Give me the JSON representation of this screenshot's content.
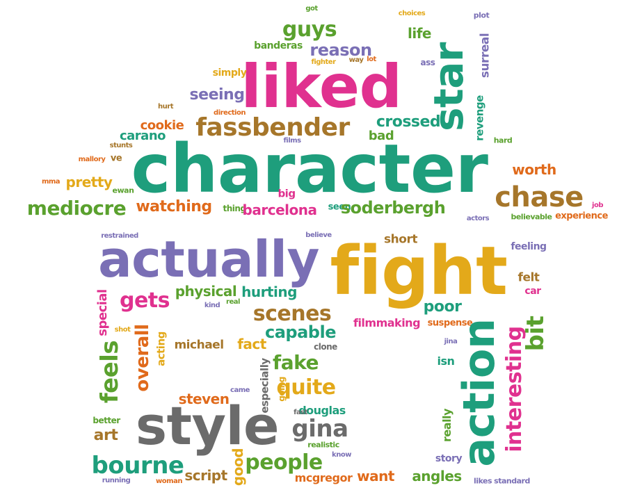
{
  "colors": {
    "teal": "#1e9e7c",
    "magenta": "#e0318f",
    "green": "#5aa12e",
    "purple": "#7a6fb5",
    "gold": "#e3a91a",
    "orange": "#e06a1b",
    "brown": "#a6762a",
    "gray": "#6b6b6b"
  },
  "words": [
    {
      "text": "character",
      "c": "teal"
    },
    {
      "text": "liked",
      "c": "magenta"
    },
    {
      "text": "star",
      "c": "teal"
    },
    {
      "text": "guys",
      "c": "green"
    },
    {
      "text": "reason",
      "c": "purple"
    },
    {
      "text": "banderas",
      "c": "green"
    },
    {
      "text": "fighter",
      "c": "gold"
    },
    {
      "text": "got",
      "c": "green"
    },
    {
      "text": "way",
      "c": "brown"
    },
    {
      "text": "lot",
      "c": "orange"
    },
    {
      "text": "life",
      "c": "green"
    },
    {
      "text": "choices",
      "c": "gold"
    },
    {
      "text": "plot",
      "c": "purple"
    },
    {
      "text": "ass",
      "c": "purple"
    },
    {
      "text": "surreal",
      "c": "purple"
    },
    {
      "text": "simply",
      "c": "gold"
    },
    {
      "text": "seeing",
      "c": "purple"
    },
    {
      "text": "fassbender",
      "c": "brown"
    },
    {
      "text": "crossed",
      "c": "teal"
    },
    {
      "text": "bad",
      "c": "green"
    },
    {
      "text": "revenge",
      "c": "teal"
    },
    {
      "text": "hard",
      "c": "green"
    },
    {
      "text": "cookie",
      "c": "orange"
    },
    {
      "text": "carano",
      "c": "teal"
    },
    {
      "text": "direction",
      "c": "orange"
    },
    {
      "text": "hurt",
      "c": "brown"
    },
    {
      "text": "stunts",
      "c": "brown"
    },
    {
      "text": "films",
      "c": "purple"
    },
    {
      "text": "mallory",
      "c": "orange"
    },
    {
      "text": "ve",
      "c": "brown"
    },
    {
      "text": "mma",
      "c": "orange"
    },
    {
      "text": "pretty",
      "c": "gold"
    },
    {
      "text": "ewan",
      "c": "green"
    },
    {
      "text": "worth",
      "c": "orange"
    },
    {
      "text": "chase",
      "c": "brown"
    },
    {
      "text": "big",
      "c": "magenta"
    },
    {
      "text": "mediocre",
      "c": "green"
    },
    {
      "text": "watching",
      "c": "orange"
    },
    {
      "text": "thing",
      "c": "green"
    },
    {
      "text": "barcelona",
      "c": "magenta"
    },
    {
      "text": "seen",
      "c": "teal"
    },
    {
      "text": "soderbergh",
      "c": "green"
    },
    {
      "text": "job",
      "c": "magenta"
    },
    {
      "text": "believable",
      "c": "green"
    },
    {
      "text": "actors",
      "c": "purple"
    },
    {
      "text": "experience",
      "c": "orange"
    },
    {
      "text": "restrained",
      "c": "purple"
    },
    {
      "text": "believe",
      "c": "purple"
    },
    {
      "text": "actually",
      "c": "purple"
    },
    {
      "text": "fight",
      "c": "gold"
    },
    {
      "text": "short",
      "c": "brown"
    },
    {
      "text": "feeling",
      "c": "purple"
    },
    {
      "text": "felt",
      "c": "brown"
    },
    {
      "text": "car",
      "c": "magenta"
    },
    {
      "text": "physical",
      "c": "green"
    },
    {
      "text": "hurting",
      "c": "teal"
    },
    {
      "text": "kind",
      "c": "purple"
    },
    {
      "text": "real",
      "c": "green"
    },
    {
      "text": "gets",
      "c": "magenta"
    },
    {
      "text": "special",
      "c": "magenta"
    },
    {
      "text": "shot",
      "c": "gold"
    },
    {
      "text": "overall",
      "c": "orange"
    },
    {
      "text": "acting",
      "c": "gold"
    },
    {
      "text": "scenes",
      "c": "brown"
    },
    {
      "text": "poor",
      "c": "teal"
    },
    {
      "text": "capable",
      "c": "teal"
    },
    {
      "text": "filmmaking",
      "c": "magenta"
    },
    {
      "text": "suspense",
      "c": "orange"
    },
    {
      "text": "action",
      "c": "teal"
    },
    {
      "text": "bit",
      "c": "green"
    },
    {
      "text": "interesting",
      "c": "magenta"
    },
    {
      "text": "feels",
      "c": "green"
    },
    {
      "text": "michael",
      "c": "brown"
    },
    {
      "text": "fact",
      "c": "gold"
    },
    {
      "text": "clone",
      "c": "gray"
    },
    {
      "text": "jina",
      "c": "purple"
    },
    {
      "text": "isn",
      "c": "teal"
    },
    {
      "text": "fake",
      "c": "green"
    },
    {
      "text": "especially",
      "c": "gray"
    },
    {
      "text": "quite",
      "c": "gold"
    },
    {
      "text": "going",
      "c": "gold"
    },
    {
      "text": "came",
      "c": "purple"
    },
    {
      "text": "douglas",
      "c": "teal"
    },
    {
      "text": "fast",
      "c": "gray"
    },
    {
      "text": "steven",
      "c": "orange"
    },
    {
      "text": "style",
      "c": "gray"
    },
    {
      "text": "gina",
      "c": "gray"
    },
    {
      "text": "better",
      "c": "green"
    },
    {
      "text": "art",
      "c": "brown"
    },
    {
      "text": "realistic",
      "c": "green"
    },
    {
      "text": "really",
      "c": "green"
    },
    {
      "text": "know",
      "c": "purple"
    },
    {
      "text": "story",
      "c": "purple"
    },
    {
      "text": "bourne",
      "c": "teal"
    },
    {
      "text": "script",
      "c": "brown"
    },
    {
      "text": "good",
      "c": "gold"
    },
    {
      "text": "people",
      "c": "green"
    },
    {
      "text": "mcgregor",
      "c": "orange"
    },
    {
      "text": "want",
      "c": "orange"
    },
    {
      "text": "angles",
      "c": "green"
    },
    {
      "text": "running",
      "c": "purple"
    },
    {
      "text": "woman",
      "c": "orange"
    },
    {
      "text": "likes",
      "c": "purple"
    },
    {
      "text": "standard",
      "c": "purple"
    }
  ]
}
